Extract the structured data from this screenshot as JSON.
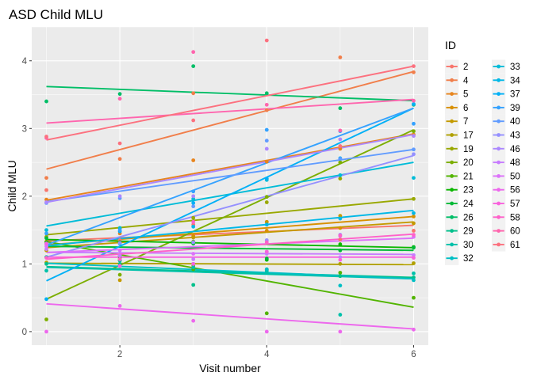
{
  "chart_data": {
    "type": "scatter",
    "title": "ASD Child MLU",
    "xlabel": "Visit number",
    "ylabel": "Child MLU",
    "xlim": [
      0.8,
      6.2
    ],
    "ylim": [
      -0.2,
      4.5
    ],
    "x_ticks": [
      2,
      4,
      6
    ],
    "y_ticks": [
      0,
      1,
      2,
      3,
      4
    ],
    "grid": true,
    "legend": {
      "title": "ID",
      "placement": "right",
      "columns": 2
    },
    "series": [
      {
        "name": "2",
        "color": "#F8766D",
        "points": [
          [
            1,
            2.09
          ],
          [
            2,
            1.35
          ],
          [
            3,
            1.58
          ],
          [
            4,
            1.62
          ],
          [
            5,
            1.36
          ],
          [
            6,
            1.49
          ]
        ],
        "trend": [
          [
            1,
            1.34
          ],
          [
            6,
            1.57
          ]
        ]
      },
      {
        "name": "4",
        "color": "#F17E4A",
        "points": [
          [
            1,
            2.27
          ],
          [
            2,
            2.55
          ],
          [
            3,
            3.52
          ],
          [
            4,
            3.27
          ],
          [
            5,
            4.05
          ],
          [
            6,
            3.83
          ]
        ],
        "trend": [
          [
            1,
            2.4
          ],
          [
            6,
            3.84
          ]
        ]
      },
      {
        "name": "5",
        "color": "#E7851E",
        "points": [
          [
            1,
            1.95
          ],
          [
            2,
            1.45
          ],
          [
            3,
            2.53
          ],
          [
            4,
            2.51
          ],
          [
            5,
            2.7
          ],
          [
            6,
            2.91
          ]
        ],
        "trend": [
          [
            1,
            1.94
          ],
          [
            6,
            2.92
          ]
        ]
      },
      {
        "name": "6",
        "color": "#D89000",
        "points": [
          [
            1,
            1.33
          ],
          [
            2,
            1.06
          ],
          [
            3,
            1.41
          ],
          [
            4,
            1.49
          ],
          [
            5,
            1.53
          ],
          [
            6,
            1.7
          ]
        ],
        "trend": [
          [
            1,
            1.28
          ],
          [
            6,
            1.7
          ]
        ]
      },
      {
        "name": "7",
        "color": "#C49A00",
        "points": [
          [
            1,
            1.2
          ],
          [
            2,
            0.76
          ],
          [
            3,
            1.39
          ],
          [
            4,
            1.62
          ],
          [
            5,
            1.71
          ],
          [
            6,
            1.6
          ]
        ],
        "trend": [
          [
            1,
            1.24
          ],
          [
            6,
            1.62
          ]
        ]
      },
      {
        "name": "17",
        "color": "#B0A000",
        "points": [
          [
            1,
            1.02
          ],
          [
            2,
            1.08
          ],
          [
            3,
            0.97
          ],
          [
            4,
            0.92
          ],
          [
            5,
            1.0
          ],
          [
            6,
            1.01
          ]
        ],
        "trend": [
          [
            1,
            1.01
          ],
          [
            6,
            0.99
          ]
        ]
      },
      {
        "name": "19",
        "color": "#99A800",
        "points": [
          [
            1,
            1.4
          ],
          [
            2,
            1.53
          ],
          [
            3,
            1.68
          ],
          [
            4,
            1.91
          ],
          [
            5,
            2.26
          ],
          [
            6,
            1.96
          ]
        ],
        "trend": [
          [
            1,
            1.43
          ],
          [
            6,
            1.96
          ]
        ]
      },
      {
        "name": "20",
        "color": "#7CAE00",
        "points": [
          [
            1,
            0.18
          ],
          [
            2,
            0.84
          ],
          [
            3,
            1.33
          ],
          [
            4,
            1.99
          ],
          [
            5,
            2.5
          ],
          [
            6,
            2.96
          ]
        ],
        "trend": [
          [
            1,
            0.48
          ],
          [
            6,
            2.98
          ]
        ]
      },
      {
        "name": "21",
        "color": "#52B400",
        "points": [
          [
            1,
            1.1
          ],
          [
            2,
            1.05
          ],
          [
            3,
            0.92
          ],
          [
            4,
            0.27
          ],
          [
            5,
            0.87
          ],
          [
            6,
            0.5
          ]
        ],
        "trend": [
          [
            1,
            1.33
          ],
          [
            6,
            0.36
          ]
        ]
      },
      {
        "name": "23",
        "color": "#0CB702",
        "points": [
          [
            1,
            1.32
          ],
          [
            2,
            1.32
          ],
          [
            3,
            1.32
          ],
          [
            4,
            1.06
          ],
          [
            5,
            1.29
          ],
          [
            6,
            1.25
          ]
        ],
        "trend": [
          [
            1,
            1.36
          ],
          [
            6,
            1.24
          ]
        ]
      },
      {
        "name": "24",
        "color": "#00BA38",
        "points": [
          [
            1,
            1.38
          ],
          [
            2,
            1.11
          ],
          [
            3,
            1.3
          ],
          [
            4,
            1.08
          ],
          [
            5,
            1.2
          ],
          [
            6,
            1.24
          ]
        ],
        "trend": [
          [
            1,
            1.26
          ],
          [
            6,
            1.2
          ]
        ]
      },
      {
        "name": "26",
        "color": "#00BE67",
        "points": [
          [
            1,
            3.4
          ],
          [
            2,
            3.51
          ],
          [
            3,
            3.92
          ],
          [
            4,
            3.52
          ],
          [
            5,
            3.3
          ],
          [
            6,
            3.35
          ]
        ],
        "trend": [
          [
            1,
            3.62
          ],
          [
            6,
            3.41
          ]
        ]
      },
      {
        "name": "29",
        "color": "#00C08B",
        "points": [
          [
            1,
            1.0
          ],
          [
            2,
            1.0
          ],
          [
            3,
            0.69
          ],
          [
            4,
            0.9
          ],
          [
            5,
            0.82
          ],
          [
            6,
            0.8
          ]
        ],
        "trend": [
          [
            1,
            0.96
          ],
          [
            6,
            0.8
          ]
        ]
      },
      {
        "name": "30",
        "color": "#00C1AA",
        "points": [
          [
            1,
            0.9
          ],
          [
            2,
            1.05
          ],
          [
            3,
            0.95
          ],
          [
            4,
            0.88
          ],
          [
            5,
            0.25
          ],
          [
            6,
            0.86
          ]
        ],
        "trend": [
          [
            1,
            0.95
          ],
          [
            6,
            0.78
          ]
        ]
      },
      {
        "name": "32",
        "color": "#00BFC4",
        "points": [
          [
            1,
            1.1
          ],
          [
            2,
            0.97
          ],
          [
            3,
            1.0
          ],
          [
            4,
            0.92
          ],
          [
            5,
            0.68
          ],
          [
            6,
            0.76
          ]
        ],
        "trend": [
          [
            1,
            1.01
          ],
          [
            6,
            0.78
          ]
        ]
      },
      {
        "name": "33",
        "color": "#00BCD8",
        "points": [
          [
            1,
            1.5
          ],
          [
            2,
            1.53
          ],
          [
            3,
            1.96
          ],
          [
            4,
            2.24
          ],
          [
            5,
            2.31
          ],
          [
            6,
            2.27
          ]
        ],
        "trend": [
          [
            1,
            1.56
          ],
          [
            6,
            2.5
          ]
        ]
      },
      {
        "name": "34",
        "color": "#00B8E7",
        "points": [
          [
            1,
            1.3
          ],
          [
            2,
            1.3
          ],
          [
            3,
            1.55
          ],
          [
            4,
            1.58
          ],
          [
            5,
            1.67
          ],
          [
            6,
            1.75
          ]
        ],
        "trend": [
          [
            1,
            1.27
          ],
          [
            6,
            1.79
          ]
        ]
      },
      {
        "name": "37",
        "color": "#00B0F6",
        "points": [
          [
            1,
            0.48
          ],
          [
            2,
            1.48
          ],
          [
            3,
            1.9
          ],
          [
            4,
            2.26
          ],
          [
            5,
            2.56
          ],
          [
            6,
            3.36
          ]
        ],
        "trend": [
          [
            1,
            0.75
          ],
          [
            6,
            3.3
          ]
        ]
      },
      {
        "name": "39",
        "color": "#35A2FF",
        "points": [
          [
            1,
            1.45
          ],
          [
            2,
            1.5
          ],
          [
            3,
            2.07
          ],
          [
            4,
            2.98
          ],
          [
            5,
            2.96
          ],
          [
            6,
            3.07
          ]
        ],
        "trend": [
          [
            1,
            1.28
          ],
          [
            6,
            3.3
          ]
        ]
      },
      {
        "name": "40",
        "color": "#619CFF",
        "points": [
          [
            1,
            1.9
          ],
          [
            2,
            1.97
          ],
          [
            3,
            1.85
          ],
          [
            4,
            2.82
          ],
          [
            5,
            2.55
          ],
          [
            6,
            2.69
          ]
        ],
        "trend": [
          [
            1,
            1.92
          ],
          [
            6,
            2.69
          ]
        ]
      },
      {
        "name": "43",
        "color": "#9590FF",
        "points": [
          [
            1,
            1.29
          ],
          [
            2,
            1.31
          ],
          [
            3,
            1.32
          ],
          [
            4,
            1.35
          ],
          [
            5,
            1.43
          ],
          [
            6,
            2.62
          ]
        ],
        "trend": [
          [
            1,
            1.1
          ],
          [
            6,
            2.6
          ]
        ]
      },
      {
        "name": "46",
        "color": "#AC88FF",
        "points": [
          [
            1,
            1.91
          ],
          [
            2,
            2.0
          ],
          [
            3,
            2.0
          ],
          [
            4,
            2.7
          ],
          [
            5,
            2.84
          ],
          [
            6,
            2.89
          ]
        ],
        "trend": [
          [
            1,
            1.91
          ],
          [
            6,
            2.91
          ]
        ]
      },
      {
        "name": "48",
        "color": "#C77CFF",
        "points": [
          [
            1,
            1.22
          ],
          [
            2,
            1.12
          ],
          [
            3,
            1.07
          ],
          [
            4,
            1.15
          ],
          [
            5,
            1.1
          ],
          [
            6,
            1.13
          ]
        ],
        "trend": [
          [
            1,
            1.17
          ],
          [
            6,
            1.14
          ]
        ]
      },
      {
        "name": "50",
        "color": "#DC71FA",
        "points": [
          [
            1,
            1.26
          ],
          [
            2,
            1.2
          ],
          [
            3,
            1.15
          ],
          [
            4,
            1.18
          ],
          [
            5,
            1.41
          ],
          [
            6,
            1.4
          ]
        ],
        "trend": [
          [
            1,
            1.17
          ],
          [
            6,
            1.38
          ]
        ]
      },
      {
        "name": "56",
        "color": "#ED68ED",
        "points": [
          [
            1,
            0.0
          ],
          [
            2,
            0.38
          ],
          [
            3,
            0.16
          ],
          [
            4,
            0.0
          ],
          [
            5,
            0.0
          ],
          [
            6,
            0.03
          ]
        ],
        "trend": [
          [
            1,
            0.41
          ],
          [
            6,
            0.04
          ]
        ]
      },
      {
        "name": "57",
        "color": "#F962DD",
        "points": [
          [
            1,
            1.3
          ],
          [
            2,
            0.97
          ],
          [
            3,
            1.0
          ],
          [
            4,
            1.18
          ],
          [
            5,
            1.06
          ],
          [
            6,
            1.09
          ]
        ],
        "trend": [
          [
            1,
            1.1
          ],
          [
            6,
            1.1
          ]
        ]
      },
      {
        "name": "58",
        "color": "#FF61C9",
        "points": [
          [
            1,
            1.09
          ],
          [
            2,
            1.07
          ],
          [
            3,
            1.62
          ],
          [
            4,
            1.32
          ],
          [
            5,
            1.42
          ],
          [
            6,
            1.43
          ]
        ],
        "trend": [
          [
            1,
            1.07
          ],
          [
            6,
            1.44
          ]
        ]
      },
      {
        "name": "60",
        "color": "#FF65AE",
        "points": [
          [
            1,
            2.86
          ],
          [
            2,
            3.44
          ],
          [
            3,
            4.13
          ],
          [
            4,
            3.35
          ],
          [
            5,
            2.97
          ],
          [
            6,
            3.41
          ]
        ],
        "trend": [
          [
            1,
            3.08
          ],
          [
            6,
            3.43
          ]
        ]
      },
      {
        "name": "61",
        "color": "#FC717F",
        "points": [
          [
            1,
            2.88
          ],
          [
            2,
            2.78
          ],
          [
            3,
            3.12
          ],
          [
            4,
            4.3
          ],
          [
            5,
            2.74
          ],
          [
            6,
            3.92
          ]
        ],
        "trend": [
          [
            1,
            2.83
          ],
          [
            6,
            3.92
          ]
        ]
      }
    ]
  }
}
